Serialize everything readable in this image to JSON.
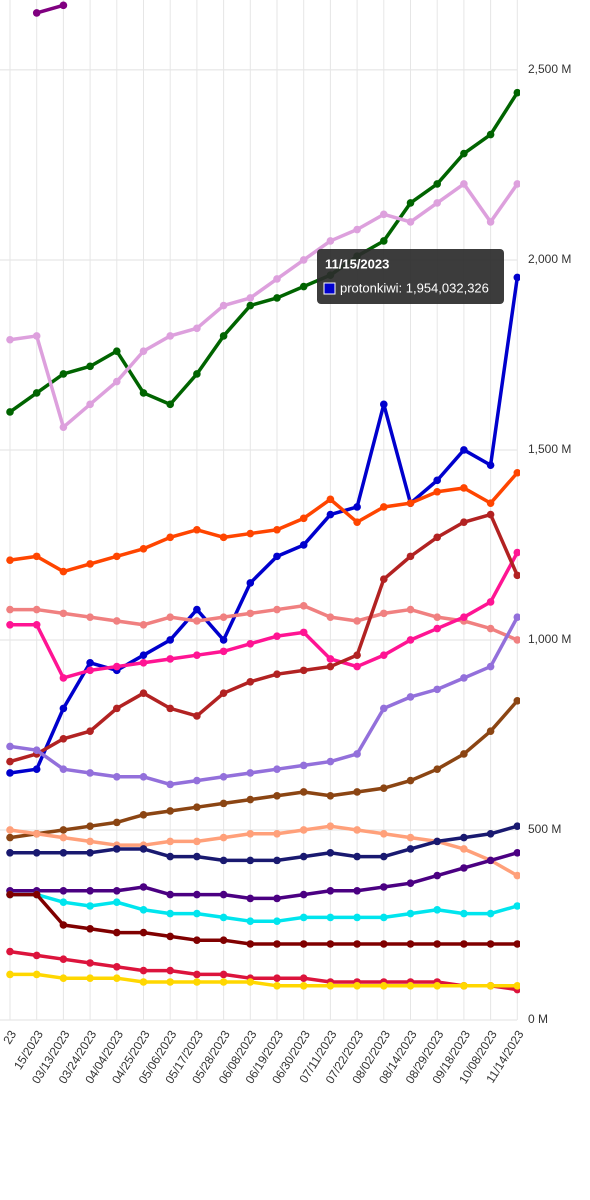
{
  "chart_data": {
    "type": "line",
    "categories": [
      "23",
      "15/2023",
      "03/13/2023",
      "03/24/2023",
      "04/04/2023",
      "04/25/2023",
      "05/06/2023",
      "05/17/2023",
      "05/28/2023",
      "06/08/2023",
      "06/19/2023",
      "06/30/2023",
      "07/11/2023",
      "07/22/2023",
      "08/02/2023",
      "08/14/2023",
      "08/29/2023",
      "09/18/2023",
      "10/08/2023",
      "11/14/2023"
    ],
    "ylim": [
      0,
      2684
    ],
    "yticks": [
      {
        "value": 0,
        "label": "0 M"
      },
      {
        "value": 500,
        "label": "500 M"
      },
      {
        "value": 1000,
        "label": "1,000 M"
      },
      {
        "value": 1500,
        "label": "1,500 M"
      },
      {
        "value": 2000,
        "label": "2,000 M"
      },
      {
        "value": 2500,
        "label": "2,500 M"
      }
    ],
    "grid": true,
    "series": [
      {
        "color": "#006400",
        "values": [
          1600,
          1650,
          1700,
          1720,
          1760,
          1650,
          1620,
          1700,
          1800,
          1880,
          1900,
          1930,
          1960,
          2010,
          2050,
          2150,
          2200,
          2280,
          2330,
          2440
        ]
      },
      {
        "color": "#dda0dd",
        "values": [
          1790,
          1800,
          1560,
          1620,
          1680,
          1760,
          1800,
          1820,
          1880,
          1900,
          1950,
          2000,
          2050,
          2080,
          2120,
          2100,
          2150,
          2200,
          2100,
          2200
        ]
      },
      {
        "color": "#0000cd",
        "values": [
          650,
          660,
          820,
          940,
          920,
          960,
          1000,
          1080,
          1000,
          1150,
          1220,
          1250,
          1330,
          1350,
          1620,
          1360,
          1420,
          1500,
          1460,
          1954.032326
        ]
      },
      {
        "color": "#ff4500",
        "values": [
          1210,
          1220,
          1180,
          1200,
          1220,
          1240,
          1270,
          1290,
          1270,
          1280,
          1290,
          1320,
          1370,
          1310,
          1350,
          1360,
          1390,
          1400,
          1360,
          1440
        ]
      },
      {
        "color": "#f08080",
        "values": [
          1080,
          1080,
          1070,
          1060,
          1050,
          1040,
          1060,
          1050,
          1060,
          1070,
          1080,
          1090,
          1060,
          1050,
          1070,
          1080,
          1060,
          1050,
          1030,
          1000
        ]
      },
      {
        "color": "#ff1493",
        "values": [
          1040,
          1040,
          900,
          920,
          930,
          940,
          950,
          960,
          970,
          990,
          1010,
          1020,
          950,
          930,
          960,
          1000,
          1030,
          1060,
          1100,
          1230
        ]
      },
      {
        "color": "#b22222",
        "values": [
          680,
          700,
          740,
          760,
          820,
          860,
          820,
          800,
          860,
          890,
          910,
          920,
          930,
          960,
          1160,
          1220,
          1270,
          1310,
          1330,
          1170
        ]
      },
      {
        "color": "#9370db",
        "values": [
          720,
          710,
          660,
          650,
          640,
          640,
          620,
          630,
          640,
          650,
          660,
          670,
          680,
          700,
          820,
          850,
          870,
          900,
          930,
          1060
        ]
      },
      {
        "color": "#8b4513",
        "values": [
          480,
          490,
          500,
          510,
          520,
          540,
          550,
          560,
          570,
          580,
          590,
          600,
          590,
          600,
          610,
          630,
          660,
          700,
          760,
          840
        ]
      },
      {
        "color": "#ffa07a",
        "values": [
          500,
          490,
          480,
          470,
          460,
          460,
          470,
          470,
          480,
          490,
          490,
          500,
          510,
          500,
          490,
          480,
          470,
          450,
          420,
          380
        ]
      },
      {
        "color": "#191970",
        "values": [
          440,
          440,
          440,
          440,
          450,
          450,
          430,
          430,
          420,
          420,
          420,
          430,
          440,
          430,
          430,
          450,
          470,
          480,
          490,
          510
        ]
      },
      {
        "color": "#4b0082",
        "values": [
          340,
          340,
          340,
          340,
          340,
          350,
          330,
          330,
          330,
          320,
          320,
          330,
          340,
          340,
          350,
          360,
          380,
          400,
          420,
          440
        ]
      },
      {
        "color": "#00e5ee",
        "values": [
          330,
          330,
          310,
          300,
          310,
          290,
          280,
          280,
          270,
          260,
          260,
          270,
          270,
          270,
          270,
          280,
          290,
          280,
          280,
          300
        ]
      },
      {
        "color": "#800000",
        "values": [
          330,
          330,
          250,
          240,
          230,
          230,
          220,
          210,
          210,
          200,
          200,
          200,
          200,
          200,
          200,
          200,
          200,
          200,
          200,
          200
        ]
      },
      {
        "color": "#dc143c",
        "values": [
          180,
          170,
          160,
          150,
          140,
          130,
          130,
          120,
          120,
          110,
          110,
          110,
          100,
          100,
          100,
          100,
          100,
          90,
          90,
          80
        ]
      },
      {
        "color": "#ffd700",
        "values": [
          120,
          120,
          110,
          110,
          110,
          100,
          100,
          100,
          100,
          100,
          90,
          90,
          90,
          90,
          90,
          90,
          90,
          90,
          90,
          90
        ]
      },
      {
        "color": "#800080",
        "values": [
          null,
          2650,
          2670,
          null,
          null,
          null,
          null,
          null,
          null,
          null,
          null,
          null,
          null,
          null,
          null,
          null,
          null,
          null,
          null,
          null
        ]
      }
    ],
    "tooltip": {
      "title": "11/15/2023",
      "text": "protonkiwi: 1,954,032,326"
    }
  }
}
